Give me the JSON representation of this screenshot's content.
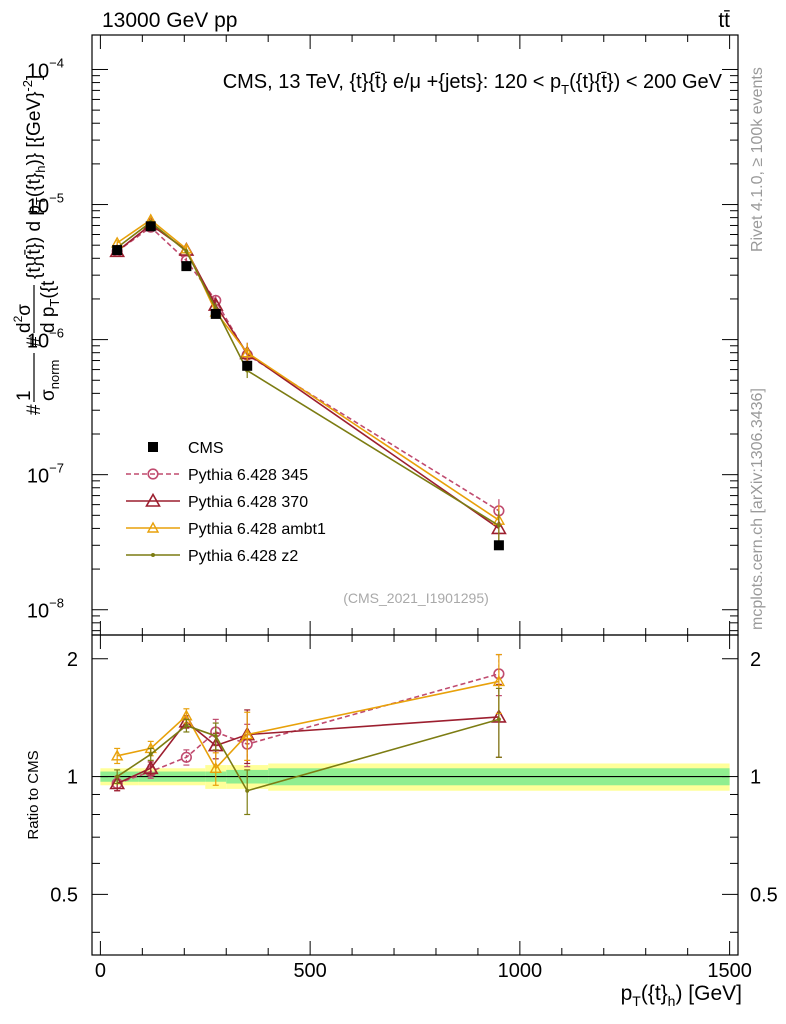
{
  "header": {
    "energy_label": "13000 GeV pp",
    "process_label": "tt̄"
  },
  "chart_data": {
    "type": "line",
    "title": "CMS, 13 TeV, {t}{t̄} e/μ +{jets}: 120 <  p_T({t}{t̄}) < 200 GeV",
    "title_parts": {
      "pre": "CMS, 13 TeV, {t}{t̄} e/μ +{jets}: 120 <  p",
      "sub": "T",
      "post": "({t}{t̄}) < 200 GeV"
    },
    "ylabel_text": "#1/σ_norm #d²σ/d p_T({t}{t̄}) d p_T({t}_h) [{GeV}⁻²]",
    "ylabel_parts": {
      "num": "#1",
      "den": "#σ",
      "den_sub": "norm",
      "hash2": "#",
      "frac2_num": "d²σ",
      "frac2_den": "d p",
      "frac2_den_sub": "T",
      "frac2_den_post": "({t",
      "rest": " d p",
      "rest_sub": "T",
      "rest_post": "({t}",
      "rest_sub2": "h",
      "unit": ")} [{GeV}",
      "unit_sup": "-2",
      "unit_end": "]"
    },
    "xlabel_parts": {
      "pre": "p",
      "sub": "T",
      "mid": "({t}",
      "sub2": "h",
      "post": ") [GeV]"
    },
    "ratio_ylabel": "Ratio to CMS",
    "analysis_id": "(CMS_2021_I1901295)",
    "side_label_top": "Rivet 4.1.0, ≥ 100k events",
    "side_label_bottom": "mcplots.cern.ch [arXiv:1306.3436]",
    "x_range": [
      -20,
      1520
    ],
    "y_range_log": [
      6.5e-09,
      0.00018
    ],
    "ratio_range": [
      0.35,
      2.3
    ],
    "x_ticks": [
      {
        "value": 0,
        "label": "0"
      },
      {
        "value": 500,
        "label": "500"
      },
      {
        "value": 1000,
        "label": "1000"
      },
      {
        "value": 1500,
        "label": "1500"
      }
    ],
    "y_ticks": [
      {
        "value": 1e-08,
        "base": "10",
        "exp": "−8"
      },
      {
        "value": 1e-07,
        "base": "10",
        "exp": "−7"
      },
      {
        "value": 1e-06,
        "base": "10",
        "exp": "−6"
      },
      {
        "value": 1e-05,
        "base": "10",
        "exp": "−5"
      },
      {
        "value": 0.0001,
        "base": "10",
        "exp": "−4"
      }
    ],
    "ratio_ticks": [
      {
        "value": 0.5,
        "label": "0.5"
      },
      {
        "value": 1,
        "label": "1"
      },
      {
        "value": 2,
        "label": "2"
      }
    ],
    "bins": [
      {
        "lo": 0,
        "hi": 90,
        "center": 40,
        "value": 4.6e-06,
        "band_inner": 0.03,
        "band_outer": 0.05
      },
      {
        "lo": 90,
        "hi": 160,
        "center": 120,
        "value": 6.9e-06,
        "band_inner": 0.03,
        "band_outer": 0.05
      },
      {
        "lo": 160,
        "hi": 250,
        "center": 205,
        "value": 3.5e-06,
        "band_inner": 0.03,
        "band_outer": 0.05
      },
      {
        "lo": 250,
        "hi": 300,
        "center": 275,
        "value": 1.55e-06,
        "band_inner": 0.03,
        "band_outer": 0.07
      },
      {
        "lo": 300,
        "hi": 400,
        "center": 350,
        "value": 6.4e-07,
        "band_inner": 0.04,
        "band_outer": 0.07
      },
      {
        "lo": 400,
        "hi": 1500,
        "center": 950,
        "value": 3e-08,
        "band_inner": 0.05,
        "band_outer": 0.08
      }
    ],
    "series": [
      {
        "name": "Pythia 6.428 345",
        "color": "#c04b6f",
        "dashed": true,
        "marker": "circle",
        "x": [
          40,
          120,
          205,
          275,
          350,
          950
        ],
        "values": [
          4.5e-06,
          6.8e-06,
          3.85e-06,
          1.95e-06,
          7.7e-07,
          5.4e-08
        ],
        "ratio": [
          0.96,
          1.03,
          1.12,
          1.3,
          1.21,
          1.83
        ],
        "ratio_err": [
          0.04,
          0.04,
          0.05,
          0.1,
          0.15,
          0.22
        ]
      },
      {
        "name": "Pythia 6.428 370",
        "color": "#9c1f2f",
        "dashed": false,
        "marker": "triangle",
        "x": [
          40,
          120,
          205,
          275,
          350,
          950
        ],
        "values": [
          4.5e-06,
          7.1e-06,
          4.6e-06,
          1.8e-06,
          7.9e-07,
          4e-08
        ],
        "ratio": [
          0.96,
          1.05,
          1.38,
          1.2,
          1.28,
          1.42
        ],
        "ratio_err": [
          0.04,
          0.04,
          0.05,
          0.09,
          0.2,
          0.3
        ]
      },
      {
        "name": "Pythia 6.428 ambt1",
        "color": "#e8a10a",
        "dashed": false,
        "marker": "triangle-small",
        "x": [
          40,
          120,
          205,
          275,
          350,
          950
        ],
        "values": [
          5.2e-06,
          7.7e-06,
          4.7e-06,
          1.6e-06,
          8e-07,
          4.6e-08
        ],
        "ratio": [
          1.13,
          1.18,
          1.43,
          1.05,
          1.28,
          1.75
        ],
        "ratio_err": [
          0.05,
          0.05,
          0.06,
          0.1,
          0.18,
          0.3
        ]
      },
      {
        "name": "Pythia 6.428 z2",
        "color": "#7c7c12",
        "dashed": false,
        "marker": "dot",
        "x": [
          40,
          120,
          205,
          275,
          350,
          950
        ],
        "values": [
          4.8e-06,
          7.4e-06,
          4.5e-06,
          1.7e-06,
          5.9e-07,
          4.2e-08
        ],
        "ratio": [
          1.0,
          1.14,
          1.35,
          1.27,
          0.92,
          1.4
        ],
        "ratio_err": [
          0.04,
          0.04,
          0.05,
          0.1,
          0.12,
          0.28
        ]
      }
    ],
    "data_series": {
      "name": "CMS",
      "color": "#000000",
      "marker": "square",
      "x": [
        40,
        120,
        205,
        275,
        350,
        950
      ],
      "values": [
        4.6e-06,
        6.9e-06,
        3.5e-06,
        1.55e-06,
        6.4e-07,
        3e-08
      ]
    },
    "legend_order": [
      "CMS",
      "Pythia 6.428 345",
      "Pythia 6.428 370",
      "Pythia 6.428 ambt1",
      "Pythia 6.428 z2"
    ],
    "legend_position": "left-middle",
    "band_colors": {
      "inner": "#90ee90",
      "outer": "#ffff99"
    }
  }
}
